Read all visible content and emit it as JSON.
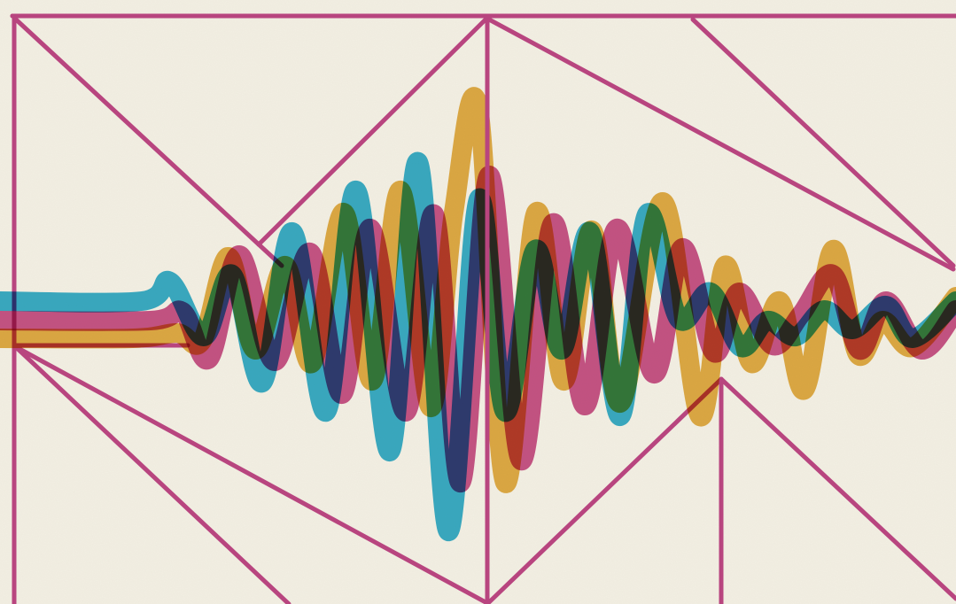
{
  "artwork": {
    "subject": "abstract-seismic-waveform",
    "colors": {
      "background": "#f3efe3",
      "frame_lines": "#b8457f",
      "wave_gold": "#e2a52c",
      "wave_cyan": "#1aa6cf",
      "wave_magenta": "#c2337a",
      "wave_overlap": "#2e3f78"
    },
    "wave_layers": [
      "gold",
      "cyan",
      "magenta"
    ]
  }
}
